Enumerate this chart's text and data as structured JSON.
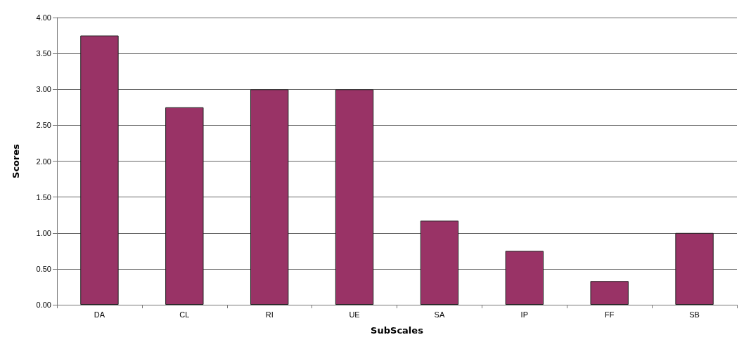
{
  "chart_data": {
    "type": "bar",
    "xlabel": "SubScales",
    "ylabel": "Scores",
    "categories": [
      "DA",
      "CL",
      "RI",
      "UE",
      "SA",
      "IP",
      "FF",
      "SB"
    ],
    "values": [
      3.75,
      2.75,
      3.0,
      3.0,
      1.17,
      0.75,
      0.33,
      1.0
    ],
    "color": "#993366",
    "ylim": [
      0,
      4
    ],
    "yticks": [
      {
        "value": 0,
        "label": "0.00"
      },
      {
        "value": 0.5,
        "label": "0.50"
      },
      {
        "value": 1,
        "label": "1.00"
      },
      {
        "value": 1.5,
        "label": "1.50"
      },
      {
        "value": 2,
        "label": "2.00"
      },
      {
        "value": 2.5,
        "label": "2.50"
      },
      {
        "value": 3,
        "label": "3.00"
      },
      {
        "value": 3.5,
        "label": "3.50"
      },
      {
        "value": 4,
        "label": "4.00"
      }
    ],
    "grid": "y"
  }
}
